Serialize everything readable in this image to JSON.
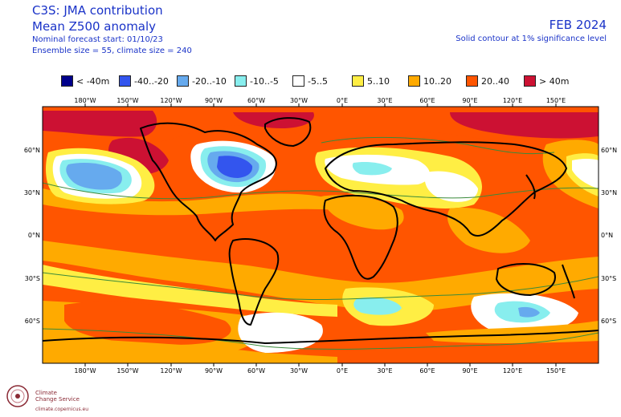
{
  "header": {
    "title": "C3S: JMA contribution",
    "subtitle": "Mean Z500 anomaly",
    "forecast_start": "Nominal forecast start: 01/10/23",
    "ensemble": "Ensemble size = 55, climate size = 240",
    "valid_month": "FEB 2024",
    "contour_note": "Solid contour at 1% significance level"
  },
  "legend": [
    {
      "label": "< -40m",
      "color": "#00008b"
    },
    {
      "label": "-40..-20",
      "color": "#3355ee"
    },
    {
      "label": "-20..-10",
      "color": "#66aaee"
    },
    {
      "label": "-10..-5",
      "color": "#88eeee"
    },
    {
      "label": "-5..5",
      "color": "#ffffff"
    },
    {
      "label": "5..10",
      "color": "#ffee44"
    },
    {
      "label": "10..20",
      "color": "#ffaa00"
    },
    {
      "label": "20..40",
      "color": "#ff5500"
    },
    {
      "label": "> 40m",
      "color": "#cc1133"
    }
  ],
  "map": {
    "lon_labels": [
      "180°W",
      "150°W",
      "120°W",
      "90°W",
      "60°W",
      "30°W",
      "0°E",
      "30°E",
      "60°E",
      "90°E",
      "120°E",
      "150°E"
    ],
    "lat_labels": [
      "60°N",
      "30°N",
      "0°N",
      "30°S",
      "60°S"
    ]
  },
  "logo": {
    "line1": "Climate",
    "line2": "Change Service",
    "line3": "climate.copernicus.eu"
  }
}
